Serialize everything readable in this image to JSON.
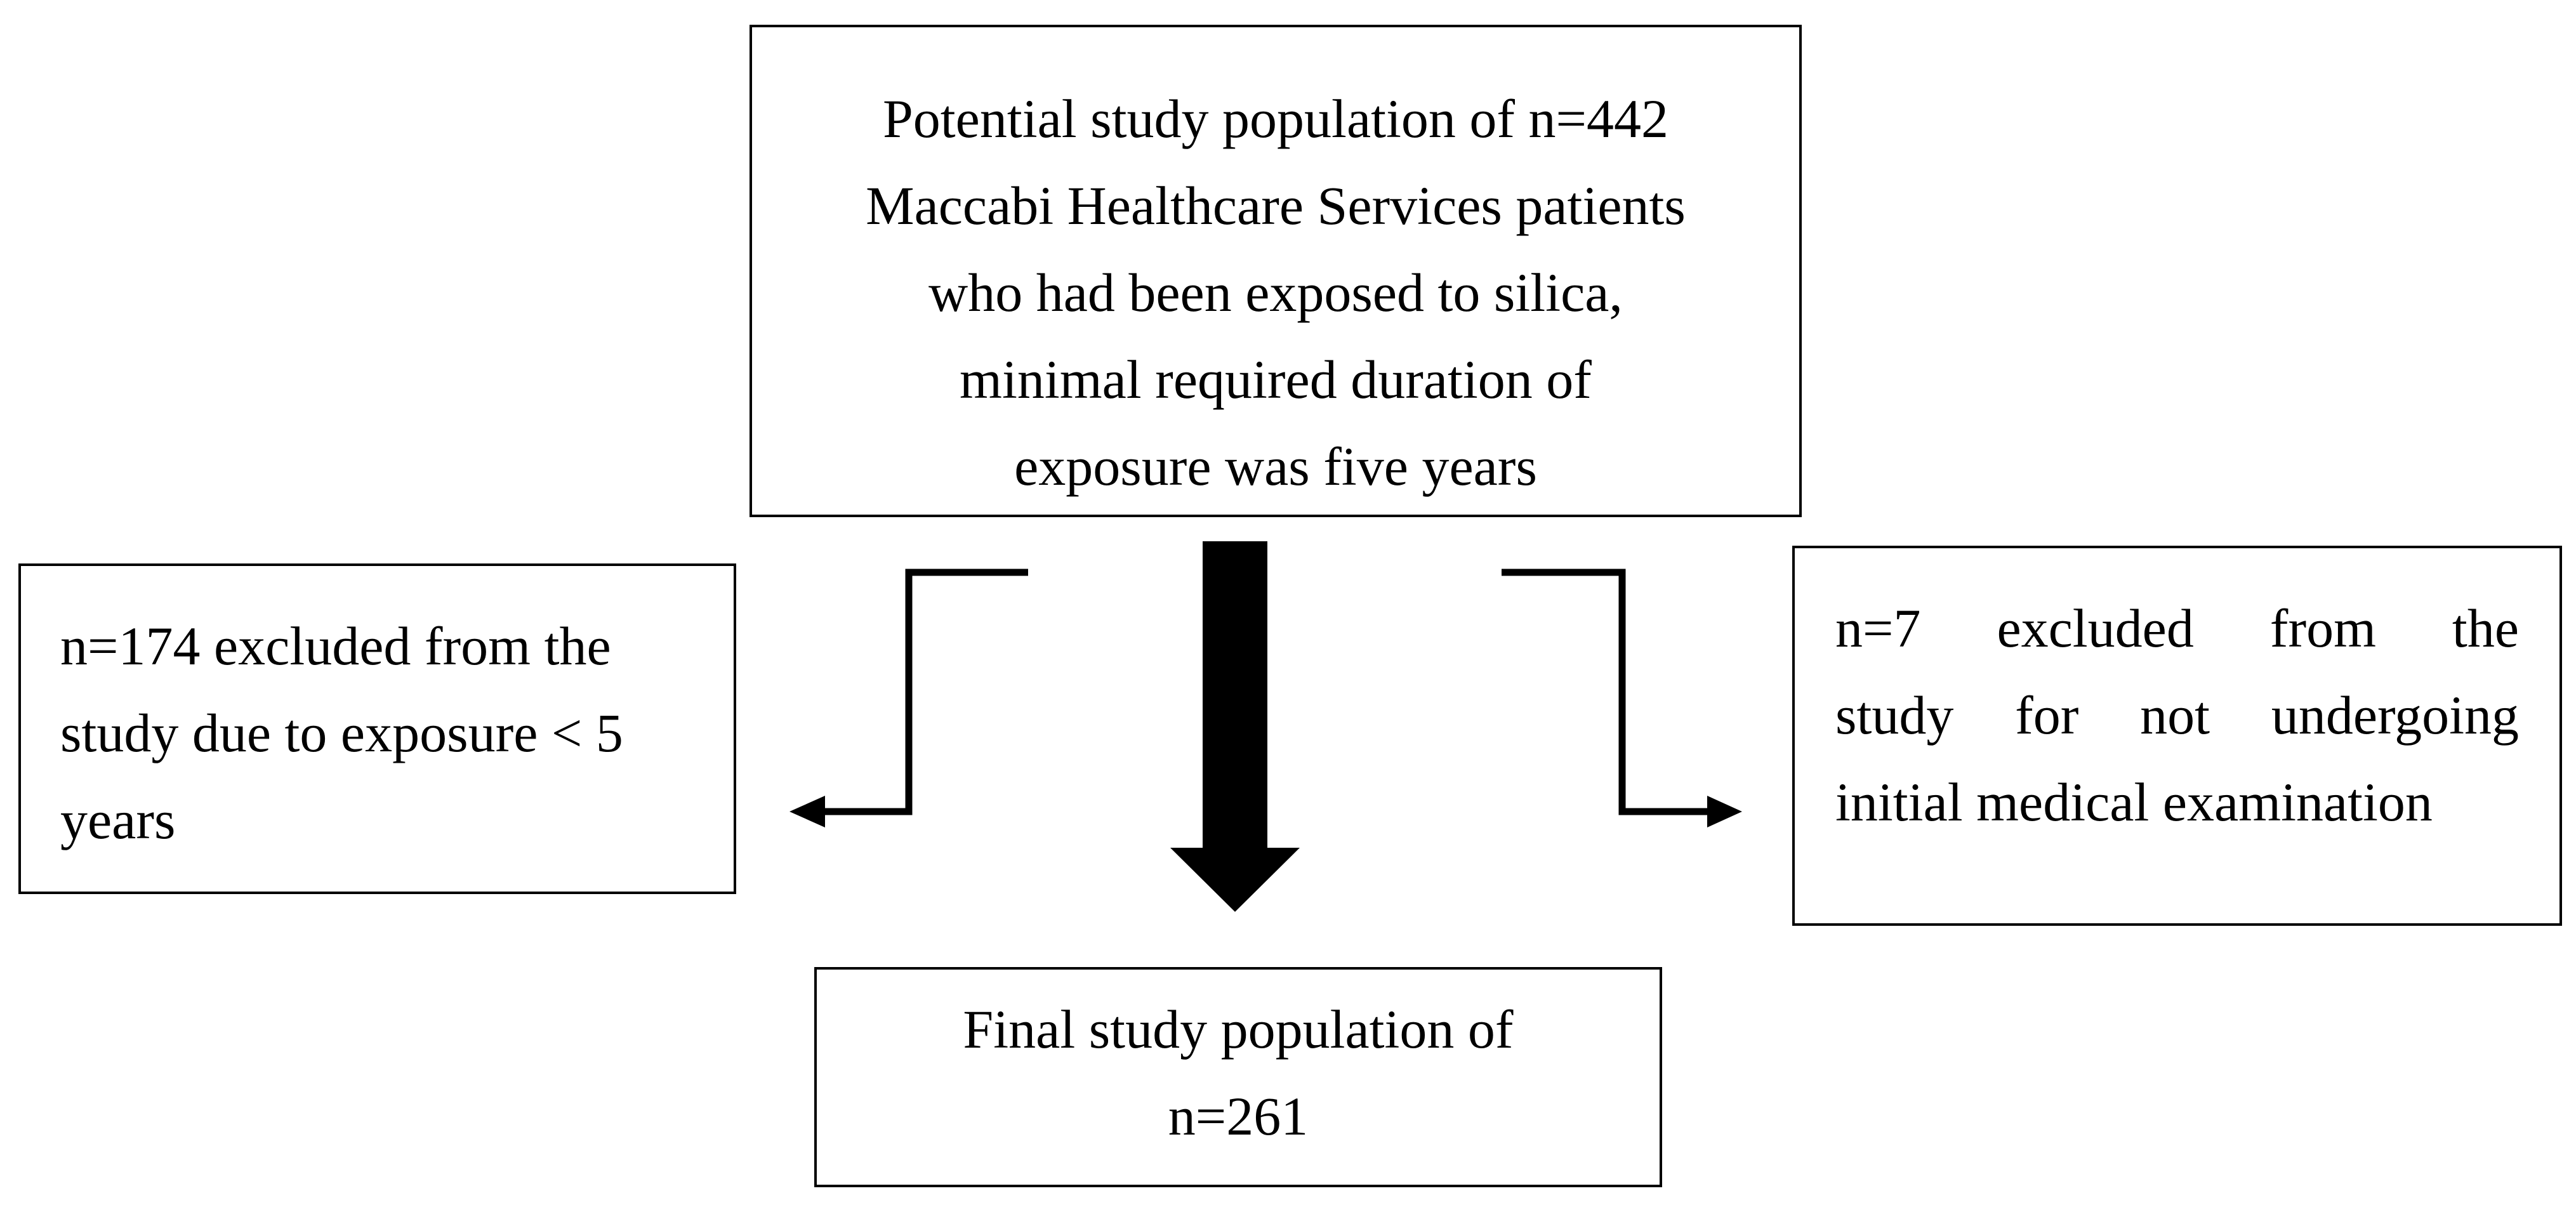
{
  "flowchart": {
    "top_box": {
      "lines": [
        "Potential study population of n=442",
        "Maccabi Healthcare Services patients",
        "who had been exposed to silica,",
        "minimal required duration of",
        "exposure was five years"
      ]
    },
    "left_box": {
      "lines": [
        "n=174 excluded from the",
        "study due to exposure < 5",
        "years"
      ]
    },
    "right_box": {
      "lines": [
        "n=7 excluded from the",
        "study for not undergoing",
        "initial medical examination"
      ]
    },
    "bottom_box": {
      "lines": [
        "Final study population of",
        "n=261"
      ]
    }
  }
}
